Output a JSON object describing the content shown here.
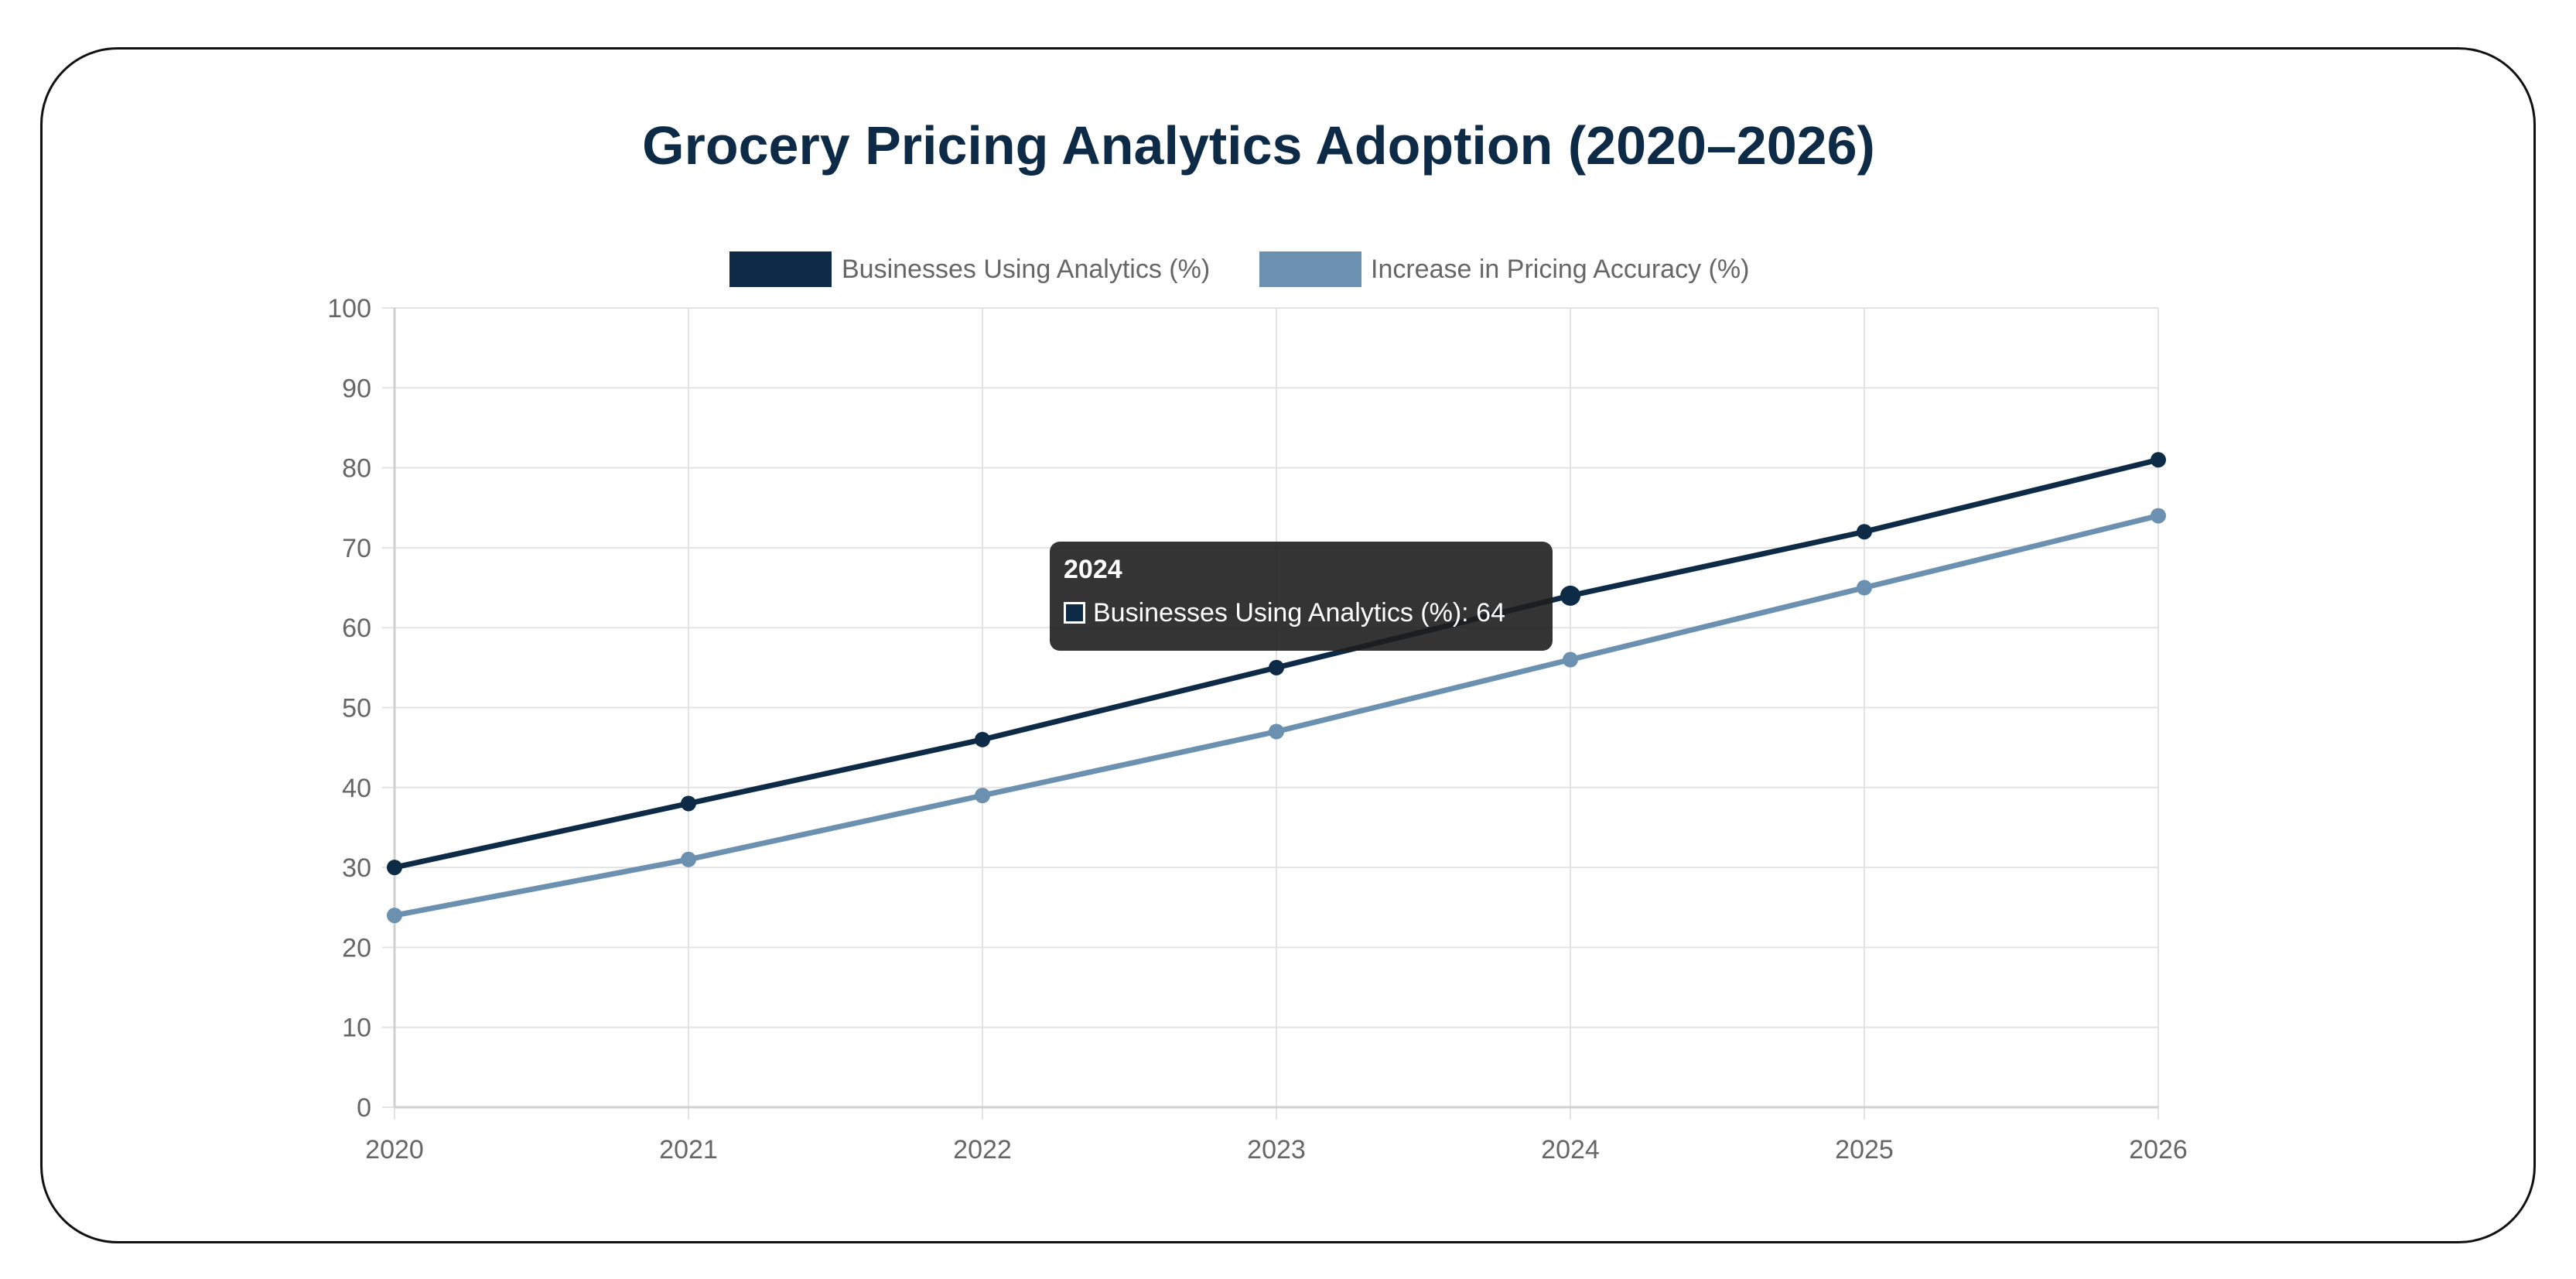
{
  "chart_data": {
    "type": "line",
    "title": "Grocery Pricing Analytics Adoption (2020–2026)",
    "categories": [
      "2020",
      "2021",
      "2022",
      "2023",
      "2024",
      "2025",
      "2026"
    ],
    "series": [
      {
        "name": "Businesses Using Analytics (%)",
        "color": "#0d2a47",
        "values": [
          30,
          38,
          46,
          55,
          64,
          72,
          81
        ]
      },
      {
        "name": "Increase in Pricing Accuracy (%)",
        "color": "#6b90b0",
        "values": [
          24,
          31,
          39,
          47,
          56,
          65,
          74
        ]
      }
    ],
    "ylim": [
      0,
      100
    ],
    "yticks": [
      "0",
      "10",
      "20",
      "30",
      "40",
      "50",
      "60",
      "70",
      "80",
      "90",
      "100"
    ],
    "grid": true,
    "legend": "top-center",
    "tooltip": {
      "title": "2024",
      "label": "Businesses Using Analytics (%): 64",
      "series_index": 0,
      "category_index": 4
    }
  }
}
